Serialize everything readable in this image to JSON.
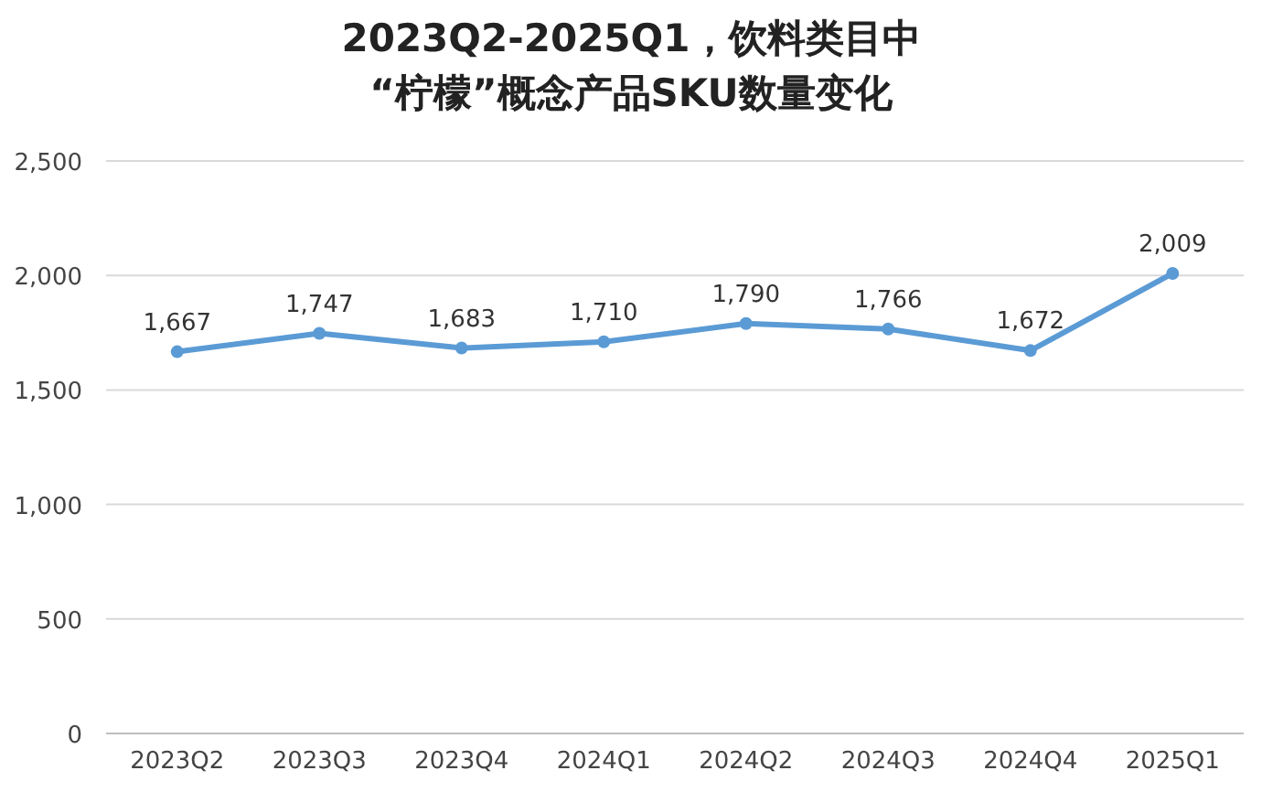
{
  "chart_data": {
    "type": "line",
    "title": "2023Q2-2025Q1，饮料类目中\n“柠檬”概念产品SKU数量变化",
    "categories": [
      "2023Q2",
      "2023Q3",
      "2023Q4",
      "2024Q1",
      "2024Q2",
      "2024Q3",
      "2024Q4",
      "2025Q1"
    ],
    "series": [
      {
        "color": "#5b9bd5",
        "values": [
          1667,
          1747,
          1683,
          1710,
          1790,
          1766,
          1672,
          2009
        ],
        "value_labels": [
          "1,667",
          "1,747",
          "1,683",
          "1,710",
          "1,790",
          "1,766",
          "1,672",
          "2,009"
        ]
      }
    ],
    "ylim": [
      0,
      2500
    ],
    "yticks": [
      0,
      500,
      {
        "value": 1000,
        "label": "1,000"
      },
      {
        "value": 1500,
        "label": "1,500"
      },
      {
        "value": 2000,
        "label": "2,000"
      },
      {
        "value": 2500,
        "label": "2,500"
      }
    ],
    "grid": "y",
    "marker": "circle",
    "line_style": "solid"
  }
}
